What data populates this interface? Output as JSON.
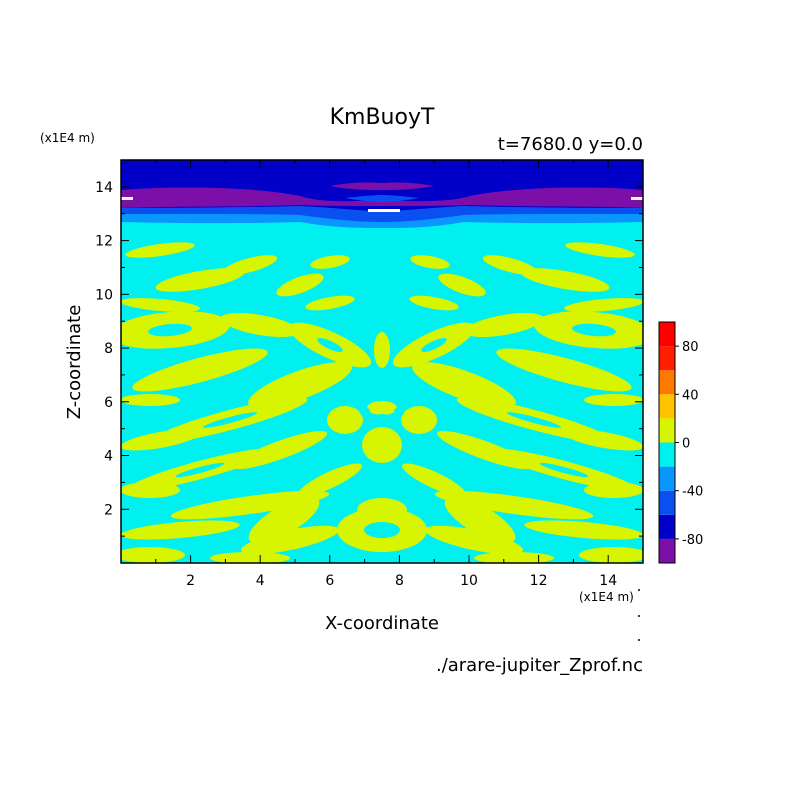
{
  "chart_data": {
    "type": "heatmap",
    "title": "KmBuoyT",
    "subtitle": "t=7680.0 y=0.0",
    "xlabel": "X-coordinate",
    "ylabel": "Z-coordinate",
    "x_unit": "(x1E4 m)",
    "y_unit": "(x1E4 m)",
    "xlim": [
      0,
      15
    ],
    "ylim": [
      0,
      15
    ],
    "x_ticks": [
      2,
      4,
      6,
      8,
      10,
      12,
      14
    ],
    "y_ticks": [
      2,
      4,
      6,
      8,
      10,
      12,
      14
    ],
    "colorbar": {
      "range": [
        -100,
        100
      ],
      "levels": [
        -100,
        -80,
        -60,
        -40,
        -20,
        0,
        20,
        40,
        60,
        80,
        100
      ],
      "tick_labels": [
        -80,
        -40,
        0,
        40,
        80
      ],
      "colors": [
        "#7b0fa8",
        "#0000c8",
        "#0a50f0",
        "#0a96ff",
        "#00f0f0",
        "#d7f500",
        "#ffc300",
        "#ff7800",
        "#ff1e00",
        "#ff0000",
        "#ffaaaa"
      ]
    },
    "grid": false,
    "footer": "./arare-jupiter_Zprof.nc"
  }
}
